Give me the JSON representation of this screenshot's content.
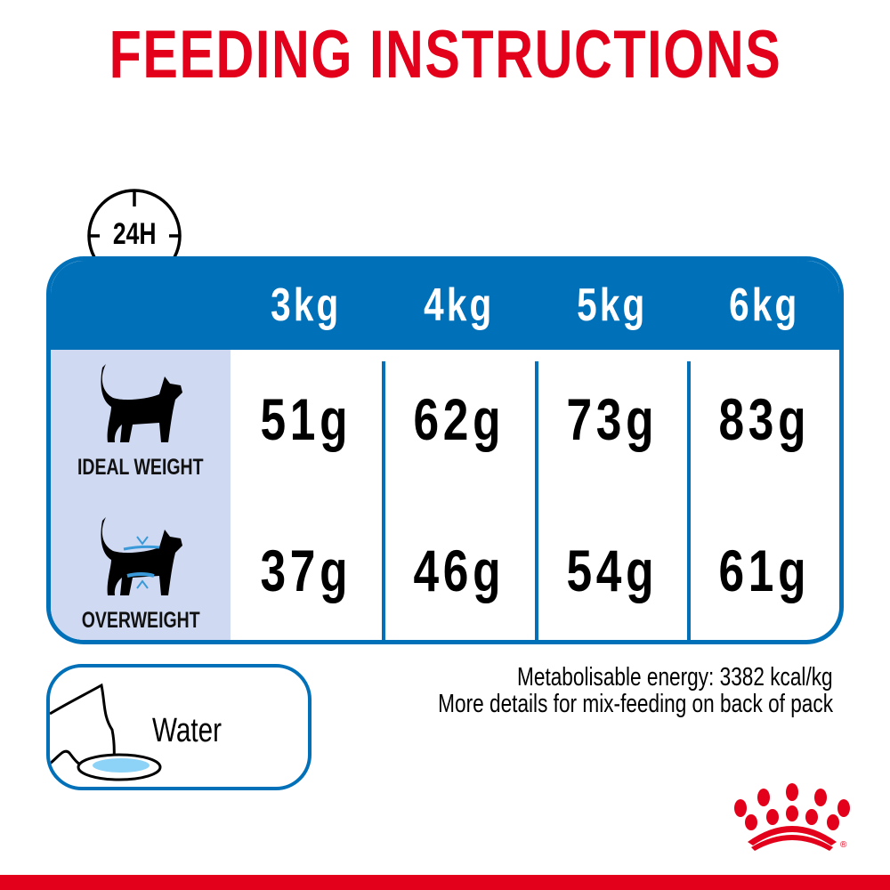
{
  "title": "FEEDING INSTRUCTIONS",
  "clock_badge": {
    "label": "24H",
    "icon": "clock-icon"
  },
  "table": {
    "columns": [
      "3kg",
      "4kg",
      "5kg",
      "6kg"
    ],
    "rows": [
      {
        "label": "IDEAL WEIGHT",
        "icon": "cat-silhouette-icon",
        "values": [
          "51g",
          "62g",
          "73g",
          "83g"
        ]
      },
      {
        "label": "OVERWEIGHT",
        "icon": "overweight-cat-icon",
        "values": [
          "37g",
          "46g",
          "54g",
          "61g"
        ]
      }
    ]
  },
  "water": {
    "label": "Water",
    "icon": "cat-drinking-water-icon"
  },
  "notes": [
    "Metabolisable energy: 3382 kcal/kg",
    "More details for mix-feeding on back of pack"
  ],
  "logo": {
    "icon": "royal-canin-crown-logo",
    "text": "®"
  },
  "colors": {
    "red": "#e2001a",
    "blue": "#0070b8",
    "light_blue": "#cfd9f2",
    "water_blue": "#8dd3f7"
  }
}
